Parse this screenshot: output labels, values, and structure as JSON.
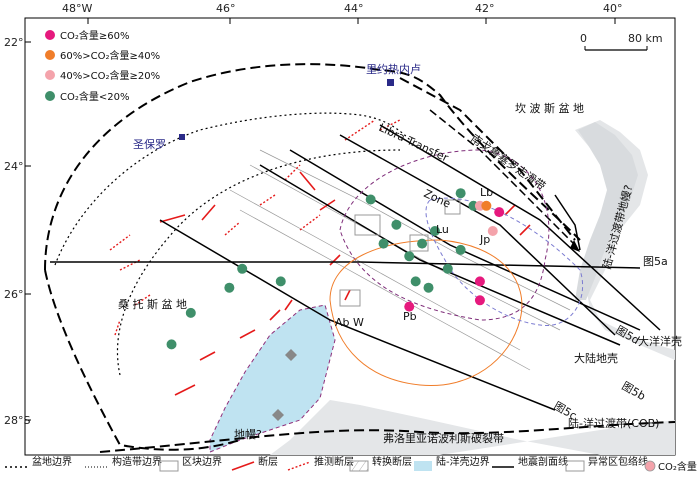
{
  "axes": {
    "lon_ticks": [
      "48°W",
      "46°",
      "44°",
      "42°",
      "40°"
    ],
    "lat_ticks": [
      "22°",
      "24°",
      "26°",
      "28°S"
    ]
  },
  "scale_bar": {
    "zero": "0",
    "end": "80 km"
  },
  "key": {
    "items": [
      {
        "label": "CO₂含量≥60%",
        "color": "#e6197d"
      },
      {
        "label": "60%>CO₂含量≥40%",
        "color": "#f07d2a"
      },
      {
        "label": "40%>CO₂含量≥20%",
        "color": "#f4a3ab"
      },
      {
        "label": "CO₂含量<20%",
        "color": "#3f8f6a"
      }
    ]
  },
  "places": {
    "rio": "里约热内卢",
    "sao_paulo": "圣保罗",
    "campos": "坎 波 斯 盆 地",
    "santos": "桑 托 斯 盆 地",
    "transfer1": "Libra Transfer",
    "zone": "Zone",
    "lb": "Lb",
    "lu": "Lu",
    "jp": "Jp",
    "pb": "Pb",
    "abw": "Ab W",
    "fig5a": "图5a",
    "fig5b": "图5b",
    "fig5c": "图5c",
    "fig5d": "图5d",
    "ocean_crust": "大洋洋壳",
    "cont_crust": "大陆地壳",
    "plume1": "地幔?",
    "plume2": "陆-洋过渡带地幔?",
    "south_fault": "南戈鲁塞罗走滑带",
    "florianopolis": "弗洛里亚诺波利斯破裂带",
    "cob": "陆-洋过渡带(COB)"
  },
  "legend": {
    "items": [
      {
        "label": "盆地边界"
      },
      {
        "label": "构造带边界"
      },
      {
        "label": "区块边界"
      },
      {
        "label": "断层"
      },
      {
        "label": "推测断层"
      },
      {
        "label": "转换断层"
      },
      {
        "label": "陆-洋壳边界"
      },
      {
        "label": "地震剖面线"
      },
      {
        "label": "异常区包络线"
      },
      {
        "label": "CO₂含量"
      }
    ]
  },
  "wells": [
    {
      "lon": -45.6,
      "lat": 25.6,
      "co2": "<20"
    },
    {
      "lon": -45.8,
      "lat": 25.9,
      "co2": "<20"
    },
    {
      "lon": -45.0,
      "lat": 25.8,
      "co2": "<20"
    },
    {
      "lon": -46.4,
      "lat": 26.3,
      "co2": "<20"
    },
    {
      "lon": -46.7,
      "lat": 26.8,
      "co2": "<20"
    },
    {
      "lon": -43.6,
      "lat": 24.5,
      "co2": "<20"
    },
    {
      "lon": -43.2,
      "lat": 24.9,
      "co2": "<20"
    },
    {
      "lon": -43.4,
      "lat": 25.2,
      "co2": "<20"
    },
    {
      "lon": -43.0,
      "lat": 25.4,
      "co2": "<20"
    },
    {
      "lon": -42.8,
      "lat": 25.2,
      "co2": "<20"
    },
    {
      "lon": -42.6,
      "lat": 25.0,
      "co2": "<20"
    },
    {
      "lon": -42.2,
      "lat": 25.3,
      "co2": "<20"
    },
    {
      "lon": -42.4,
      "lat": 25.6,
      "co2": "<20"
    },
    {
      "lon": -42.9,
      "lat": 25.8,
      "co2": "<20"
    },
    {
      "lon": -42.7,
      "lat": 25.9,
      "co2": "<20"
    },
    {
      "lon": -42.2,
      "lat": 24.4,
      "co2": "<20"
    },
    {
      "lon": -42.0,
      "lat": 24.6,
      "co2": "<20"
    },
    {
      "lon": -41.9,
      "lat": 24.6,
      "co2": "40-20"
    },
    {
      "lon": -41.7,
      "lat": 25.0,
      "co2": "40-20"
    },
    {
      "lon": -41.8,
      "lat": 24.6,
      "co2": "60-40"
    },
    {
      "lon": -41.6,
      "lat": 24.7,
      "co2": ">=60"
    },
    {
      "lon": -41.9,
      "lat": 25.8,
      "co2": ">=60"
    },
    {
      "lon": -43.0,
      "lat": 26.2,
      "co2": ">=60"
    },
    {
      "lon": -41.9,
      "lat": 26.1,
      "co2": ">=60"
    }
  ]
}
